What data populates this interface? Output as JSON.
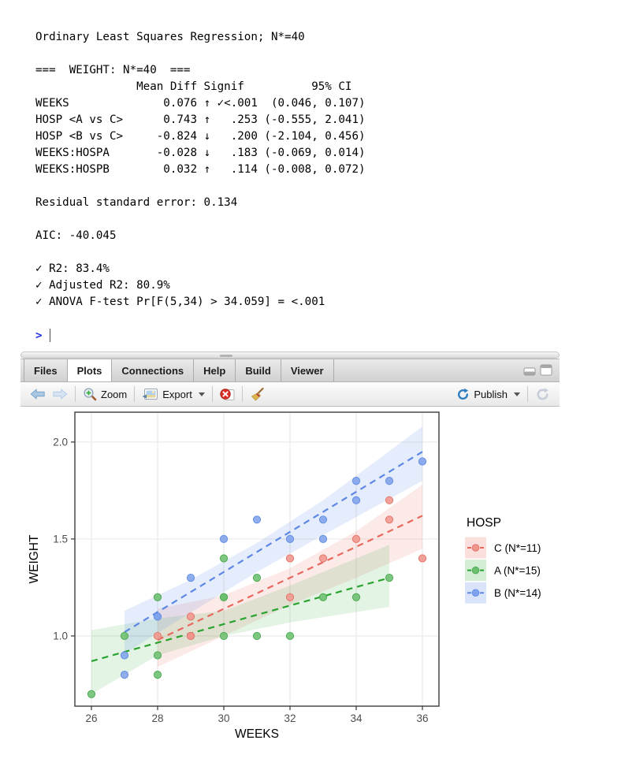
{
  "console": {
    "lines": [
      "Ordinary Least Squares Regression; N*=40",
      "",
      "===  WEIGHT: N*=40  ===",
      "               Mean Diff Signif          95% CI",
      "WEEKS              0.076 ↑ ✓<.001  (0.046, 0.107)",
      "HOSP <A vs C>      0.743 ↑   .253 (-0.555, 2.041)",
      "HOSP <B vs C>     -0.824 ↓   .200 (-2.104, 0.456)",
      "WEEKS:HOSPA       -0.028 ↓   .183 (-0.069, 0.014)",
      "WEEKS:HOSPB        0.032 ↑   .114 (-0.008, 0.072)",
      "",
      "Residual standard error: 0.134",
      "",
      "AIC: -40.045",
      "",
      "✓ R2: 83.4%",
      "✓ Adjusted R2: 80.9%",
      "✓ ANOVA F-test Pr[F(5,34) > 34.059] = <.001"
    ],
    "prompt": ">"
  },
  "pane": {
    "tabs": [
      {
        "label": "Files",
        "active": false
      },
      {
        "label": "Plots",
        "active": true
      },
      {
        "label": "Connections",
        "active": false
      },
      {
        "label": "Help",
        "active": false
      },
      {
        "label": "Build",
        "active": false
      },
      {
        "label": "Viewer",
        "active": false
      }
    ],
    "toolbar": {
      "zoom_label": "Zoom",
      "export_label": "Export",
      "publish_label": "Publish"
    }
  },
  "chart_data": {
    "type": "scatter",
    "xlabel": "WEEKS",
    "ylabel": "WEIGHT",
    "xlim": [
      25.5,
      36.5
    ],
    "ylim": [
      0.638,
      2.154
    ],
    "xticks": [
      26,
      28,
      30,
      32,
      34,
      36
    ],
    "yticks": [
      1.0,
      1.5,
      2.0
    ],
    "grid": "major-only",
    "legend_title": "HOSP",
    "legend_position": "right",
    "series": [
      {
        "name": "C (N*=11)",
        "line_color": "#e8685d",
        "dot_fill": "#f0958c",
        "dot_stroke": "#e4776c",
        "band_opacity": 0.14,
        "points": [
          [
            28,
            1.0
          ],
          [
            29,
            1.0
          ],
          [
            29,
            1.0
          ],
          [
            29,
            1.1
          ],
          [
            32,
            1.2
          ],
          [
            32,
            1.4
          ],
          [
            33,
            1.4
          ],
          [
            34,
            1.5
          ],
          [
            35,
            1.6
          ],
          [
            35,
            1.7
          ],
          [
            36,
            1.4
          ]
        ],
        "line": [
          [
            28,
            0.98
          ],
          [
            36,
            1.62
          ]
        ],
        "band": [
          [
            28,
            0.84,
            1.14
          ],
          [
            30,
            1.0,
            1.21
          ],
          [
            32,
            1.16,
            1.35
          ],
          [
            34,
            1.3,
            1.54
          ],
          [
            36,
            1.45,
            1.78
          ]
        ]
      },
      {
        "name": "A (N*=15)",
        "line_color": "#28a32e",
        "dot_fill": "#6cbf70",
        "dot_stroke": "#4fab54",
        "band_opacity": 0.13,
        "points": [
          [
            26,
            0.7
          ],
          [
            27,
            1.0
          ],
          [
            28,
            0.8
          ],
          [
            28,
            0.9
          ],
          [
            28,
            1.2
          ],
          [
            30,
            1.0
          ],
          [
            30,
            1.2
          ],
          [
            30,
            1.2
          ],
          [
            30,
            1.4
          ],
          [
            31,
            1.0
          ],
          [
            31,
            1.3
          ],
          [
            32,
            1.0
          ],
          [
            33,
            1.2
          ],
          [
            34,
            1.2
          ],
          [
            35,
            1.3
          ]
        ],
        "line": [
          [
            26,
            0.87
          ],
          [
            35,
            1.3
          ]
        ],
        "band": [
          [
            26,
            0.7,
            1.03
          ],
          [
            28,
            0.9,
            1.09
          ],
          [
            30,
            1.0,
            1.13
          ],
          [
            32,
            1.07,
            1.26
          ],
          [
            35,
            1.15,
            1.47
          ]
        ]
      },
      {
        "name": "B (N*=14)",
        "line_color": "#5c87e4",
        "dot_fill": "#7fa2ea",
        "dot_stroke": "#6590e6",
        "band_opacity": 0.16,
        "points": [
          [
            27,
            0.8
          ],
          [
            27,
            0.9
          ],
          [
            28,
            1.1
          ],
          [
            28,
            1.1
          ],
          [
            29,
            1.3
          ],
          [
            30,
            1.5
          ],
          [
            31,
            1.6
          ],
          [
            32,
            1.5
          ],
          [
            33,
            1.5
          ],
          [
            33,
            1.6
          ],
          [
            34,
            1.7
          ],
          [
            34,
            1.8
          ],
          [
            35,
            1.8
          ],
          [
            36,
            1.9
          ]
        ],
        "line": [
          [
            27,
            1.02
          ],
          [
            36,
            1.95
          ]
        ],
        "band": [
          [
            27,
            0.91,
            1.13
          ],
          [
            29,
            1.12,
            1.29
          ],
          [
            31,
            1.33,
            1.48
          ],
          [
            33,
            1.52,
            1.7
          ],
          [
            36,
            1.8,
            2.08
          ]
        ]
      }
    ]
  }
}
